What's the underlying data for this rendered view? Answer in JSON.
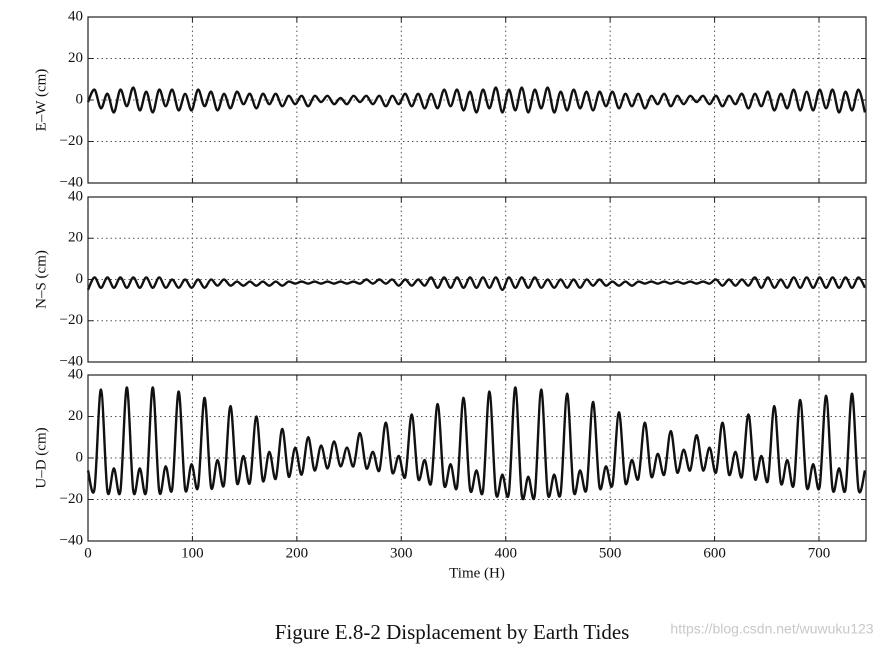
{
  "figure": {
    "caption": "Figure E.8-2   Displacement by Earth Tides",
    "watermark": "https://blog.csdn.net/wuwuku123"
  },
  "chart_data": [
    {
      "type": "line",
      "ylabel": "E–W (cm)",
      "xlim": [
        0,
        745
      ],
      "ylim": [
        -40,
        40
      ],
      "xticks": [
        0,
        100,
        200,
        300,
        400,
        500,
        600,
        700
      ],
      "yticks": [
        {
          "value": -40,
          "label": "−40"
        },
        {
          "value": -20,
          "label": "−20"
        },
        0,
        20,
        40
      ],
      "xtick_labels": false,
      "grid": true,
      "x": [
        0,
        6.2,
        12.4,
        18.6,
        24.8,
        31,
        37.2,
        43.4,
        49.6,
        55.8,
        62,
        68.2,
        74.4,
        80.6,
        86.8,
        93,
        99.2,
        105.4,
        111.6,
        117.8,
        124,
        130.2,
        136.4,
        142.6,
        148.8,
        155,
        161.2,
        167.4,
        173.6,
        179.8,
        186,
        192.2,
        198.4,
        204.6,
        210.8,
        217,
        223.2,
        229.4,
        235.6,
        241.8,
        248,
        254.2,
        260.4,
        266.6,
        272.8,
        279,
        285.2,
        291.4,
        297.6,
        303.8,
        310,
        316.2,
        322.4,
        328.6,
        334.8,
        341,
        347.2,
        353.4,
        359.6,
        365.8,
        372,
        378.2,
        384.4,
        390.6,
        396.8,
        403,
        409.2,
        415.4,
        421.6,
        427.8,
        434,
        440.2,
        446.4,
        452.6,
        458.8,
        465,
        471.2,
        477.4,
        483.6,
        489.8,
        496,
        502.2,
        508.4,
        514.6,
        520.8,
        527,
        533.2,
        539.4,
        545.6,
        551.8,
        558,
        564.2,
        570.4,
        576.6,
        582.8,
        589,
        595.2,
        601.4,
        607.6,
        613.8,
        620,
        626.2,
        632.4,
        638.6,
        644.8,
        651,
        657.2,
        663.4,
        669.6,
        675.8,
        682,
        688.2,
        694.4,
        700.6,
        706.8,
        713,
        719.2,
        725.4,
        731.6,
        737.8,
        744
      ],
      "series": [
        {
          "color": "#111111",
          "values": [
            -1,
            5,
            -4,
            3,
            -6,
            5,
            -3,
            6,
            -5,
            4,
            -6,
            5,
            -3,
            5,
            -5,
            3,
            -5,
            5,
            -3,
            4,
            -5,
            3,
            -4,
            4,
            -2,
            3,
            -4,
            3,
            -2,
            3,
            -3,
            2,
            -2,
            2,
            -3,
            2,
            -1,
            2,
            -2,
            1,
            -2,
            2,
            -1,
            2,
            -2,
            2,
            -3,
            2,
            -2,
            3,
            -3,
            3,
            -4,
            3,
            -4,
            5,
            -3,
            5,
            -5,
            4,
            -6,
            5,
            -4,
            6,
            -6,
            5,
            -5,
            6,
            -6,
            5,
            -4,
            6,
            -6,
            4,
            -5,
            5,
            -4,
            4,
            -5,
            4,
            -3,
            4,
            -4,
            3,
            -3,
            3,
            -4,
            2,
            -2,
            3,
            -3,
            2,
            -2,
            2,
            -1,
            2,
            -2,
            2,
            -3,
            2,
            -2,
            3,
            -4,
            3,
            -3,
            4,
            -5,
            3,
            -4,
            5,
            -5,
            4,
            -5,
            5,
            -4,
            5,
            -6,
            4,
            -5,
            5,
            -6
          ]
        }
      ]
    },
    {
      "type": "line",
      "ylabel": "N–S (cm)",
      "xlim": [
        0,
        745
      ],
      "ylim": [
        -40,
        40
      ],
      "xticks": [
        0,
        100,
        200,
        300,
        400,
        500,
        600,
        700
      ],
      "yticks": [
        {
          "value": -40,
          "label": "−40"
        },
        {
          "value": -20,
          "label": "−20"
        },
        0,
        20,
        40
      ],
      "xtick_labels": false,
      "grid": true,
      "x": [
        0,
        6.2,
        12.4,
        18.6,
        24.8,
        31,
        37.2,
        43.4,
        49.6,
        55.8,
        62,
        68.2,
        74.4,
        80.6,
        86.8,
        93,
        99.2,
        105.4,
        111.6,
        117.8,
        124,
        130.2,
        136.4,
        142.6,
        148.8,
        155,
        161.2,
        167.4,
        173.6,
        179.8,
        186,
        192.2,
        198.4,
        204.6,
        210.8,
        217,
        223.2,
        229.4,
        235.6,
        241.8,
        248,
        254.2,
        260.4,
        266.6,
        272.8,
        279,
        285.2,
        291.4,
        297.6,
        303.8,
        310,
        316.2,
        322.4,
        328.6,
        334.8,
        341,
        347.2,
        353.4,
        359.6,
        365.8,
        372,
        378.2,
        384.4,
        390.6,
        396.8,
        403,
        409.2,
        415.4,
        421.6,
        427.8,
        434,
        440.2,
        446.4,
        452.6,
        458.8,
        465,
        471.2,
        477.4,
        483.6,
        489.8,
        496,
        502.2,
        508.4,
        514.6,
        520.8,
        527,
        533.2,
        539.4,
        545.6,
        551.8,
        558,
        564.2,
        570.4,
        576.6,
        582.8,
        589,
        595.2,
        601.4,
        607.6,
        613.8,
        620,
        626.2,
        632.4,
        638.6,
        644.8,
        651,
        657.2,
        663.4,
        669.6,
        675.8,
        682,
        688.2,
        694.4,
        700.6,
        706.8,
        713,
        719.2,
        725.4,
        731.6,
        737.8,
        744
      ],
      "series": [
        {
          "color": "#111111",
          "values": [
            -5,
            1,
            -4,
            1,
            -4,
            1,
            -4,
            1,
            -4,
            1,
            -4,
            1,
            -4,
            0,
            -4,
            0,
            -4,
            0,
            -4,
            0,
            -3,
            0,
            -3,
            -1,
            -3,
            -1,
            -3,
            -1,
            -3,
            -1,
            -3,
            -1,
            -2,
            -1,
            -2,
            -1,
            -2,
            -1,
            -2,
            -1,
            -2,
            -1,
            -2,
            0,
            -2,
            0,
            -2,
            0,
            -3,
            0,
            -3,
            0,
            -3,
            1,
            -4,
            1,
            -4,
            1,
            -4,
            1,
            -4,
            1,
            -4,
            1,
            -5,
            1,
            -4,
            1,
            -4,
            1,
            -4,
            0,
            -4,
            0,
            -4,
            0,
            -4,
            0,
            -3,
            0,
            -3,
            -1,
            -3,
            -1,
            -3,
            -1,
            -2,
            -1,
            -2,
            -1,
            -2,
            -1,
            -2,
            -1,
            -2,
            -1,
            -2,
            0,
            -3,
            0,
            -3,
            0,
            -3,
            1,
            -4,
            1,
            -4,
            0,
            -4,
            1,
            -4,
            1,
            -4,
            1,
            -4,
            1,
            -4,
            1,
            -4,
            1,
            -4
          ]
        }
      ]
    },
    {
      "type": "line",
      "ylabel": "U–D (cm)",
      "xlabel": "Time (H)",
      "xlim": [
        0,
        745
      ],
      "ylim": [
        -40,
        40
      ],
      "xticks": [
        0,
        100,
        200,
        300,
        400,
        500,
        600,
        700
      ],
      "yticks": [
        {
          "value": -40,
          "label": "−40"
        },
        {
          "value": -20,
          "label": "−20"
        },
        0,
        20,
        40
      ],
      "xtick_labels": true,
      "grid": true,
      "x": [
        0,
        6.2,
        12.4,
        18.6,
        24.8,
        31,
        37.2,
        43.4,
        49.6,
        55.8,
        62,
        68.2,
        74.4,
        80.6,
        86.8,
        93,
        99.2,
        105.4,
        111.6,
        117.8,
        124,
        130.2,
        136.4,
        142.6,
        148.8,
        155,
        161.2,
        167.4,
        173.6,
        179.8,
        186,
        192.2,
        198.4,
        204.6,
        210.8,
        217,
        223.2,
        229.4,
        235.6,
        241.8,
        248,
        254.2,
        260.4,
        266.6,
        272.8,
        279,
        285.2,
        291.4,
        297.6,
        303.8,
        310,
        316.2,
        322.4,
        328.6,
        334.8,
        341,
        347.2,
        353.4,
        359.6,
        365.8,
        372,
        378.2,
        384.4,
        390.6,
        396.8,
        403,
        409.2,
        415.4,
        421.6,
        427.8,
        434,
        440.2,
        446.4,
        452.6,
        458.8,
        465,
        471.2,
        477.4,
        483.6,
        489.8,
        496,
        502.2,
        508.4,
        514.6,
        520.8,
        527,
        533.2,
        539.4,
        545.6,
        551.8,
        558,
        564.2,
        570.4,
        576.6,
        582.8,
        589,
        595.2,
        601.4,
        607.6,
        613.8,
        620,
        626.2,
        632.4,
        638.6,
        644.8,
        651,
        657.2,
        663.4,
        669.6,
        675.8,
        682,
        688.2,
        694.4,
        700.6,
        706.8,
        713,
        719.2,
        725.4,
        731.6,
        737.8,
        744
      ],
      "series": [
        {
          "color": "#111111",
          "values": [
            -6,
            -15,
            33,
            -16,
            -5,
            -16,
            34,
            -16,
            -5,
            -16,
            34,
            -16,
            -4,
            -15,
            32,
            -15,
            -3,
            -14,
            29,
            -14,
            -1,
            -13,
            25,
            -12,
            1,
            -12,
            20,
            -11,
            3,
            -10,
            14,
            -9,
            5,
            -8,
            10,
            -6,
            6,
            -5,
            8,
            -4,
            5,
            -4,
            12,
            -5,
            3,
            -6,
            17,
            -7,
            1,
            -9,
            21,
            -10,
            -1,
            -12,
            26,
            -13,
            -3,
            -14,
            29,
            -15,
            -6,
            -16,
            32,
            -17,
            -8,
            -17,
            34,
            -18,
            -9,
            -18,
            33,
            -17,
            -8,
            -17,
            31,
            -16,
            -6,
            -15,
            27,
            -14,
            -4,
            -13,
            22,
            -12,
            -1,
            -10,
            17,
            -9,
            2,
            -8,
            13,
            -7,
            4,
            -6,
            11,
            -6,
            5,
            -7,
            17,
            -8,
            3,
            -9,
            21,
            -10,
            1,
            -11,
            25,
            -12,
            -1,
            -13,
            28,
            -14,
            -3,
            -14,
            30,
            -15,
            -5,
            -15,
            31,
            -15,
            -6
          ]
        }
      ]
    }
  ]
}
